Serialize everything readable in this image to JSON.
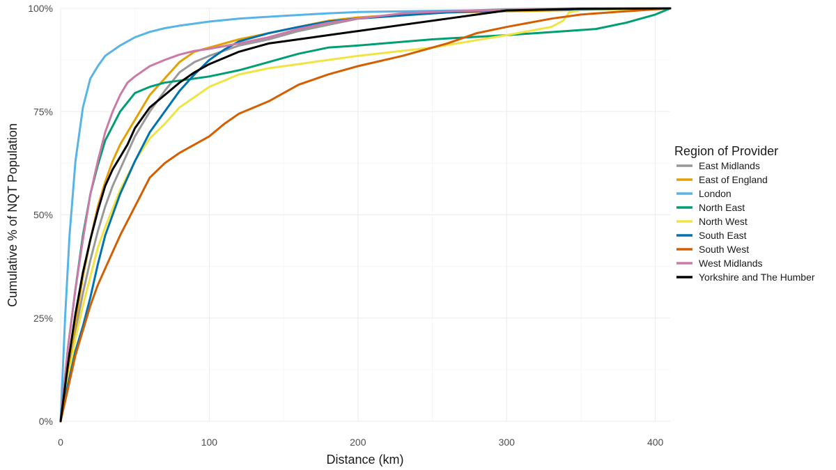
{
  "chart_data": {
    "type": "line",
    "title": "",
    "xlabel": "Distance (km)",
    "ylabel": "Cumulative % of NQT Population",
    "xlim": [
      0,
      410
    ],
    "ylim": [
      0,
      100
    ],
    "x_ticks": [
      0,
      100,
      200,
      300,
      400
    ],
    "x_tick_labels": [
      "0",
      "100",
      "200",
      "300",
      "400"
    ],
    "y_ticks": [
      0,
      25,
      50,
      75,
      100
    ],
    "y_tick_labels": [
      "0%",
      "25%",
      "50%",
      "75%",
      "100%"
    ],
    "grid": true,
    "legend": {
      "title": "Region of Provider",
      "position": "right"
    },
    "series": [
      {
        "name": "East Midlands",
        "color": "#999999",
        "points": [
          [
            0,
            0
          ],
          [
            5,
            12
          ],
          [
            10,
            22
          ],
          [
            15,
            31
          ],
          [
            20,
            39
          ],
          [
            25,
            46
          ],
          [
            30,
            52
          ],
          [
            35,
            57
          ],
          [
            40,
            61
          ],
          [
            45,
            65
          ],
          [
            50,
            69
          ],
          [
            60,
            75
          ],
          [
            70,
            80
          ],
          [
            80,
            84.5
          ],
          [
            90,
            87
          ],
          [
            100,
            88.5
          ],
          [
            120,
            91
          ],
          [
            140,
            92.5
          ],
          [
            160,
            94.5
          ],
          [
            180,
            96
          ],
          [
            200,
            97.5
          ],
          [
            230,
            98.5
          ],
          [
            260,
            99.3
          ],
          [
            300,
            99.8
          ],
          [
            350,
            100
          ],
          [
            410,
            100
          ]
        ]
      },
      {
        "name": "East of England",
        "color": "#E69F00",
        "points": [
          [
            0,
            0
          ],
          [
            5,
            13
          ],
          [
            10,
            24
          ],
          [
            15,
            35
          ],
          [
            20,
            44
          ],
          [
            25,
            52
          ],
          [
            30,
            58
          ],
          [
            35,
            63
          ],
          [
            40,
            67
          ],
          [
            45,
            70
          ],
          [
            50,
            73
          ],
          [
            60,
            79
          ],
          [
            70,
            83
          ],
          [
            80,
            87
          ],
          [
            90,
            89.5
          ],
          [
            100,
            90.5
          ],
          [
            120,
            92.5
          ],
          [
            140,
            94
          ],
          [
            160,
            95.5
          ],
          [
            180,
            97
          ],
          [
            200,
            97.8
          ],
          [
            230,
            98.5
          ],
          [
            260,
            99
          ],
          [
            300,
            99.3
          ],
          [
            350,
            99.6
          ],
          [
            410,
            100
          ]
        ]
      },
      {
        "name": "London",
        "color": "#56B4E9",
        "points": [
          [
            0,
            0
          ],
          [
            3,
            25
          ],
          [
            6,
            45
          ],
          [
            10,
            63
          ],
          [
            15,
            76
          ],
          [
            20,
            83
          ],
          [
            25,
            86
          ],
          [
            30,
            88.5
          ],
          [
            40,
            91
          ],
          [
            50,
            93
          ],
          [
            60,
            94.3
          ],
          [
            70,
            95.2
          ],
          [
            80,
            95.8
          ],
          [
            100,
            96.8
          ],
          [
            120,
            97.5
          ],
          [
            150,
            98.2
          ],
          [
            180,
            98.8
          ],
          [
            200,
            99.1
          ],
          [
            250,
            99.4
          ],
          [
            300,
            99.6
          ],
          [
            350,
            99.8
          ],
          [
            410,
            100
          ]
        ]
      },
      {
        "name": "North East",
        "color": "#009E73",
        "points": [
          [
            0,
            0
          ],
          [
            5,
            18
          ],
          [
            10,
            32
          ],
          [
            15,
            45
          ],
          [
            20,
            55
          ],
          [
            25,
            62
          ],
          [
            30,
            68
          ],
          [
            40,
            75
          ],
          [
            50,
            79.5
          ],
          [
            60,
            81
          ],
          [
            70,
            82
          ],
          [
            80,
            82.5
          ],
          [
            100,
            83.5
          ],
          [
            120,
            85
          ],
          [
            140,
            87
          ],
          [
            160,
            89
          ],
          [
            180,
            90.5
          ],
          [
            200,
            91
          ],
          [
            250,
            92.5
          ],
          [
            300,
            93.5
          ],
          [
            340,
            94.5
          ],
          [
            360,
            95
          ],
          [
            380,
            96.5
          ],
          [
            400,
            98.5
          ],
          [
            410,
            100
          ]
        ]
      },
      {
        "name": "North West",
        "color": "#F0E442",
        "points": [
          [
            0,
            0
          ],
          [
            5,
            10
          ],
          [
            10,
            20
          ],
          [
            15,
            28
          ],
          [
            20,
            35
          ],
          [
            25,
            42
          ],
          [
            30,
            47
          ],
          [
            40,
            56
          ],
          [
            50,
            63
          ],
          [
            60,
            68.5
          ],
          [
            70,
            72
          ],
          [
            80,
            76
          ],
          [
            90,
            78.5
          ],
          [
            100,
            81
          ],
          [
            120,
            84
          ],
          [
            140,
            85.5
          ],
          [
            160,
            86.5
          ],
          [
            180,
            87.5
          ],
          [
            200,
            88.5
          ],
          [
            250,
            90.5
          ],
          [
            300,
            93.5
          ],
          [
            330,
            95.5
          ],
          [
            338,
            97
          ],
          [
            342,
            99
          ],
          [
            350,
            99.6
          ],
          [
            410,
            100
          ]
        ]
      },
      {
        "name": "South East",
        "color": "#0072B2",
        "points": [
          [
            0,
            0
          ],
          [
            5,
            9
          ],
          [
            10,
            17
          ],
          [
            15,
            23
          ],
          [
            20,
            30
          ],
          [
            25,
            38
          ],
          [
            30,
            45
          ],
          [
            40,
            55
          ],
          [
            50,
            63
          ],
          [
            60,
            70
          ],
          [
            70,
            75
          ],
          [
            80,
            80
          ],
          [
            90,
            84
          ],
          [
            100,
            87.5
          ],
          [
            110,
            90
          ],
          [
            120,
            92
          ],
          [
            140,
            94
          ],
          [
            160,
            95.5
          ],
          [
            180,
            96.8
          ],
          [
            200,
            97.5
          ],
          [
            230,
            98.3
          ],
          [
            260,
            99
          ],
          [
            300,
            99.5
          ],
          [
            350,
            99.8
          ],
          [
            410,
            100
          ]
        ]
      },
      {
        "name": "South West",
        "color": "#D55E00",
        "points": [
          [
            0,
            0
          ],
          [
            5,
            8
          ],
          [
            10,
            16
          ],
          [
            15,
            22
          ],
          [
            20,
            28
          ],
          [
            25,
            33
          ],
          [
            30,
            37
          ],
          [
            40,
            45
          ],
          [
            50,
            52
          ],
          [
            60,
            59
          ],
          [
            70,
            62.5
          ],
          [
            80,
            65
          ],
          [
            90,
            67
          ],
          [
            100,
            69
          ],
          [
            110,
            72
          ],
          [
            120,
            74.5
          ],
          [
            140,
            77.5
          ],
          [
            160,
            81.5
          ],
          [
            180,
            84
          ],
          [
            200,
            86
          ],
          [
            230,
            88.5
          ],
          [
            260,
            91.5
          ],
          [
            280,
            94
          ],
          [
            300,
            95.5
          ],
          [
            330,
            97.5
          ],
          [
            350,
            98.5
          ],
          [
            380,
            99.3
          ],
          [
            410,
            100
          ]
        ]
      },
      {
        "name": "West Midlands",
        "color": "#CC79A7",
        "points": [
          [
            0,
            0
          ],
          [
            5,
            18
          ],
          [
            10,
            32
          ],
          [
            15,
            44
          ],
          [
            20,
            55
          ],
          [
            25,
            63
          ],
          [
            30,
            70
          ],
          [
            35,
            75
          ],
          [
            40,
            79
          ],
          [
            45,
            82
          ],
          [
            50,
            83.5
          ],
          [
            60,
            86
          ],
          [
            70,
            87.5
          ],
          [
            80,
            88.8
          ],
          [
            90,
            89.7
          ],
          [
            100,
            90.2
          ],
          [
            120,
            91.5
          ],
          [
            140,
            93
          ],
          [
            160,
            95
          ],
          [
            180,
            96.5
          ],
          [
            200,
            97.5
          ],
          [
            230,
            98.8
          ],
          [
            260,
            99.3
          ],
          [
            300,
            99.6
          ],
          [
            350,
            99.9
          ],
          [
            410,
            100
          ]
        ]
      },
      {
        "name": "Yorkshire and The Humber",
        "color": "#000000",
        "points": [
          [
            0,
            0
          ],
          [
            5,
            14
          ],
          [
            10,
            26
          ],
          [
            15,
            36
          ],
          [
            20,
            44
          ],
          [
            25,
            51
          ],
          [
            30,
            57
          ],
          [
            35,
            61
          ],
          [
            40,
            64
          ],
          [
            45,
            67
          ],
          [
            50,
            71
          ],
          [
            60,
            76
          ],
          [
            70,
            79
          ],
          [
            80,
            82
          ],
          [
            90,
            84.5
          ],
          [
            100,
            86.5
          ],
          [
            120,
            89.5
          ],
          [
            140,
            91.5
          ],
          [
            160,
            92.5
          ],
          [
            180,
            93.5
          ],
          [
            200,
            94.5
          ],
          [
            230,
            96
          ],
          [
            260,
            97.5
          ],
          [
            280,
            98.5
          ],
          [
            300,
            99.5
          ],
          [
            350,
            99.9
          ],
          [
            410,
            100
          ]
        ]
      }
    ]
  }
}
